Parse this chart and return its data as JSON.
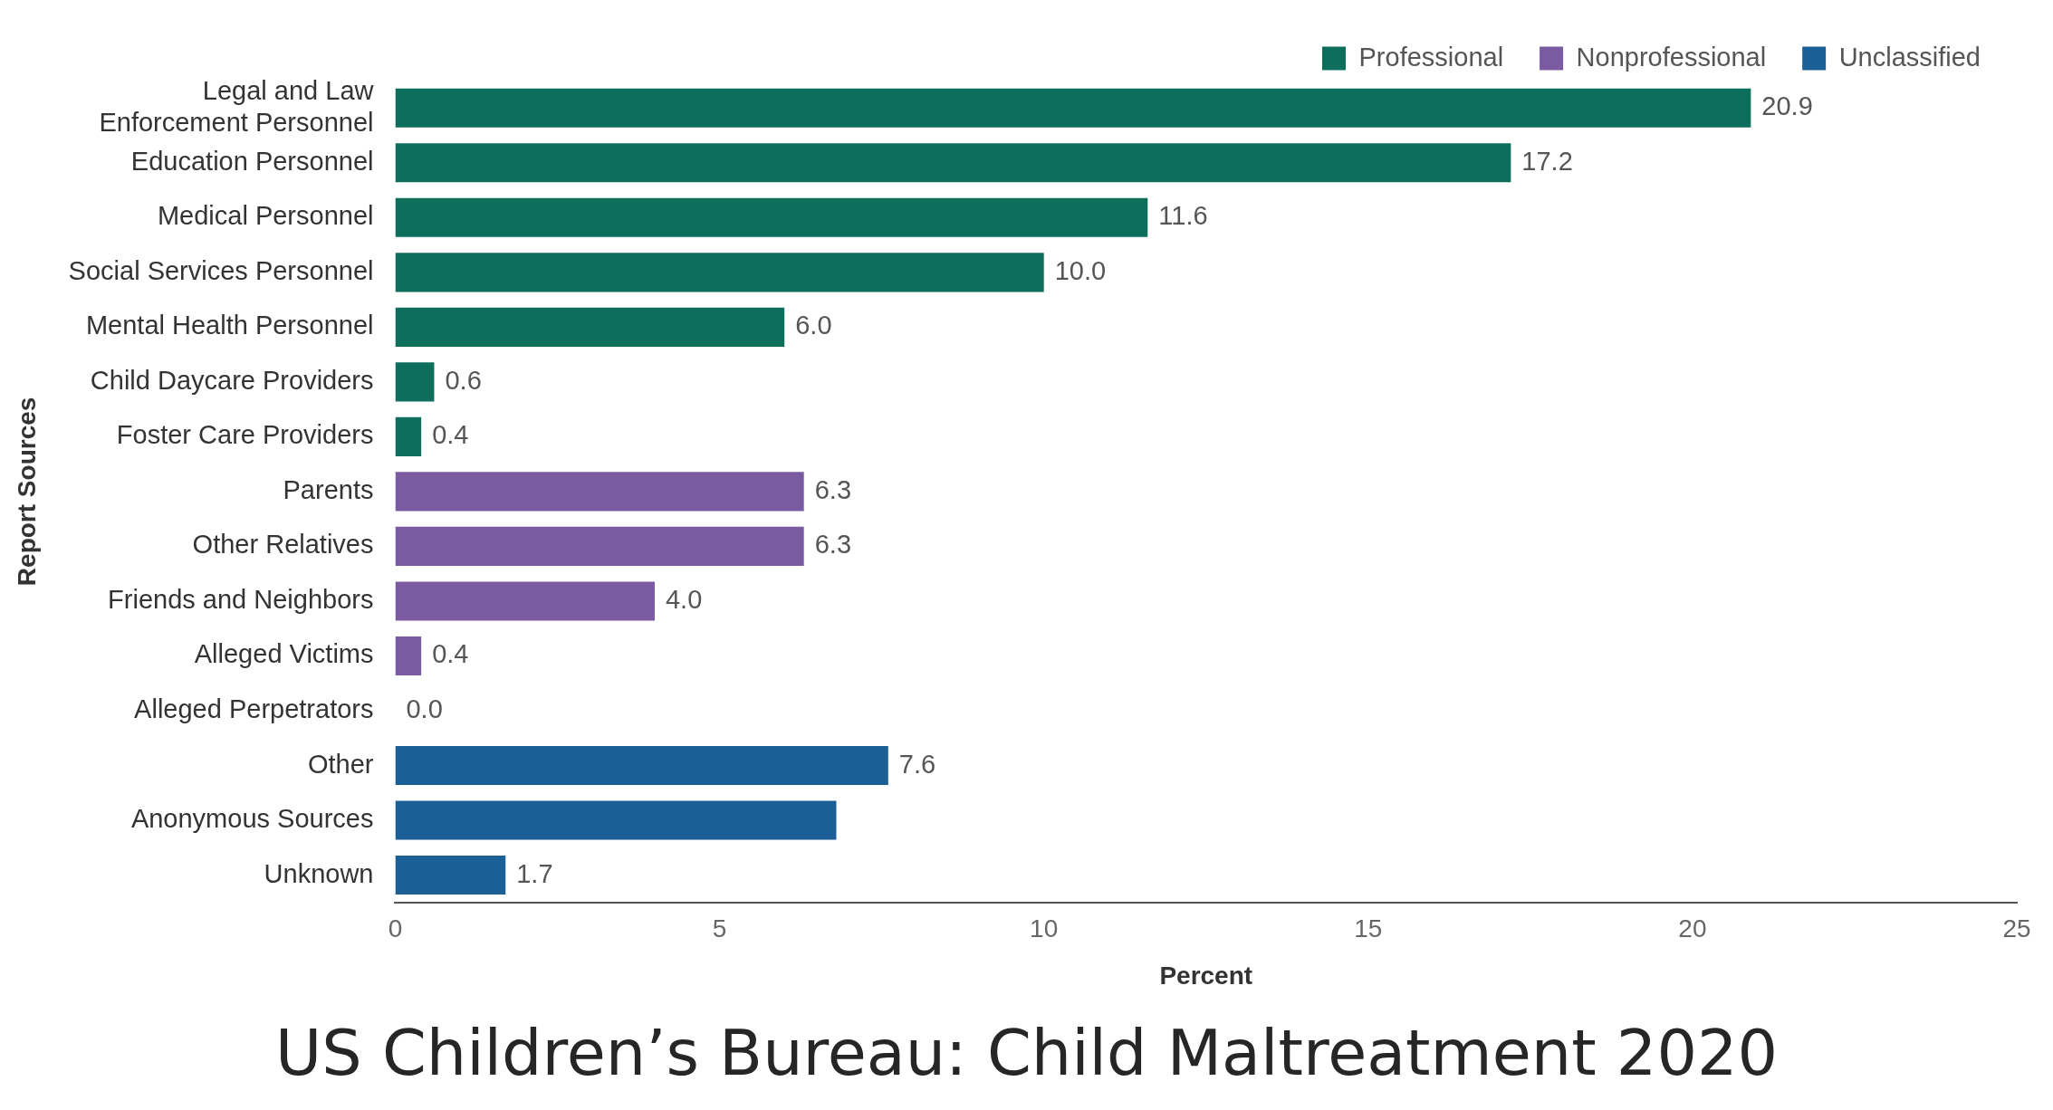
{
  "chart_data": {
    "type": "bar",
    "orientation": "horizontal",
    "stacked": true,
    "title": "US Children’s Bureau: Child Maltreatment 2020",
    "xlabel": "Percent",
    "ylabel": "Report Sources",
    "categories": [
      "Legal and Law Enforcement Personnel",
      "Education Personnel",
      "Medical Personnel",
      "Social Services Personnel",
      "Mental Health Personnel",
      "Child Daycare Providers",
      "Foster Care Providers",
      "Parents",
      "Other Relatives",
      "Friends and Neighbors",
      "Alleged Victims",
      "Alleged Perpetrators",
      "Other",
      "Anonymous Sources",
      "Unknown"
    ],
    "series": [
      {
        "name": "Professional",
        "color": "#0e6e5c",
        "values": [
          20.9,
          17.2,
          11.6,
          10.0,
          6.0,
          0.6,
          0.4,
          null,
          null,
          null,
          null,
          null,
          null,
          null,
          null
        ],
        "value_labels": [
          "20.9",
          "17.2",
          "11.6",
          "10.0",
          "6.0",
          "0.6",
          "0.4",
          null,
          null,
          null,
          null,
          null,
          null,
          null,
          null
        ]
      },
      {
        "name": "Nonprofessional",
        "color": "#7a5aa0",
        "values": [
          null,
          null,
          null,
          null,
          null,
          null,
          null,
          6.3,
          6.3,
          4.0,
          0.4,
          0.0,
          null,
          null,
          null
        ],
        "value_labels": [
          null,
          null,
          null,
          null,
          null,
          null,
          null,
          "6.3",
          "6.3",
          "4.0",
          "0.4",
          "0.0",
          null,
          null,
          null
        ]
      },
      {
        "name": "Unclassified",
        "color": "#1a5f96",
        "values": [
          null,
          null,
          null,
          null,
          null,
          null,
          null,
          null,
          null,
          null,
          null,
          null,
          7.6,
          6.8,
          1.7
        ],
        "value_labels": [
          null,
          null,
          null,
          null,
          null,
          null,
          null,
          null,
          null,
          null,
          null,
          null,
          "7.6",
          null,
          "1.7"
        ]
      }
    ],
    "xlim": [
      0,
      25
    ],
    "xticks": [
      0,
      5,
      10,
      15,
      20,
      25
    ],
    "grid": false,
    "legend": "top right"
  }
}
